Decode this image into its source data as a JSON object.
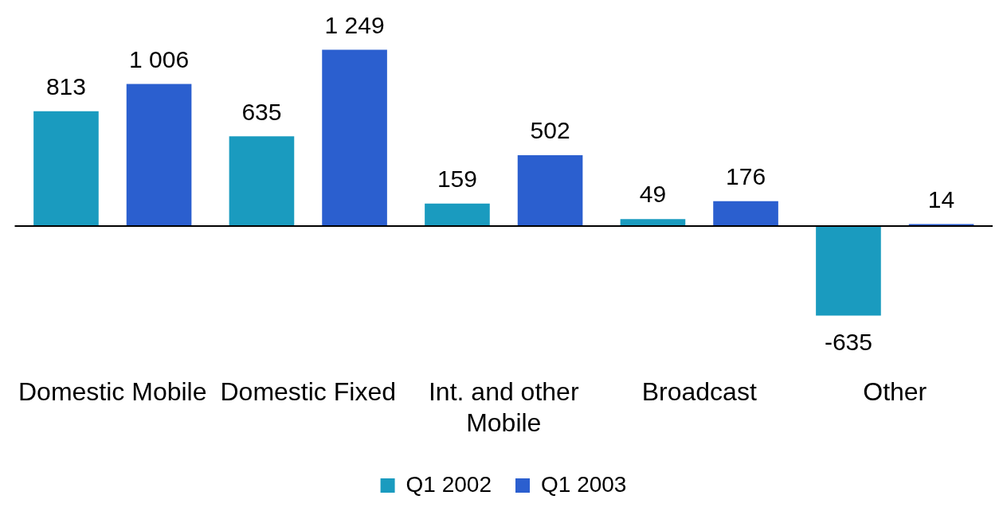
{
  "chart_data": {
    "type": "bar",
    "categories": [
      "Domestic Mobile",
      "Domestic Fixed",
      "Int. and other Mobile",
      "Broadcast",
      "Other"
    ],
    "series": [
      {
        "name": "Q1 2002",
        "color": "#1a9bbf",
        "values": [
          813,
          635,
          159,
          49,
          -635
        ],
        "value_labels": [
          "813",
          "635",
          "159",
          "49",
          "-635"
        ]
      },
      {
        "name": "Q1 2003",
        "color": "#2b5fcf",
        "values": [
          1006,
          1249,
          502,
          176,
          14
        ],
        "value_labels": [
          "1 006",
          "1 249",
          "502",
          "176",
          "14"
        ]
      }
    ],
    "legend": "bottom",
    "grid": false
  }
}
